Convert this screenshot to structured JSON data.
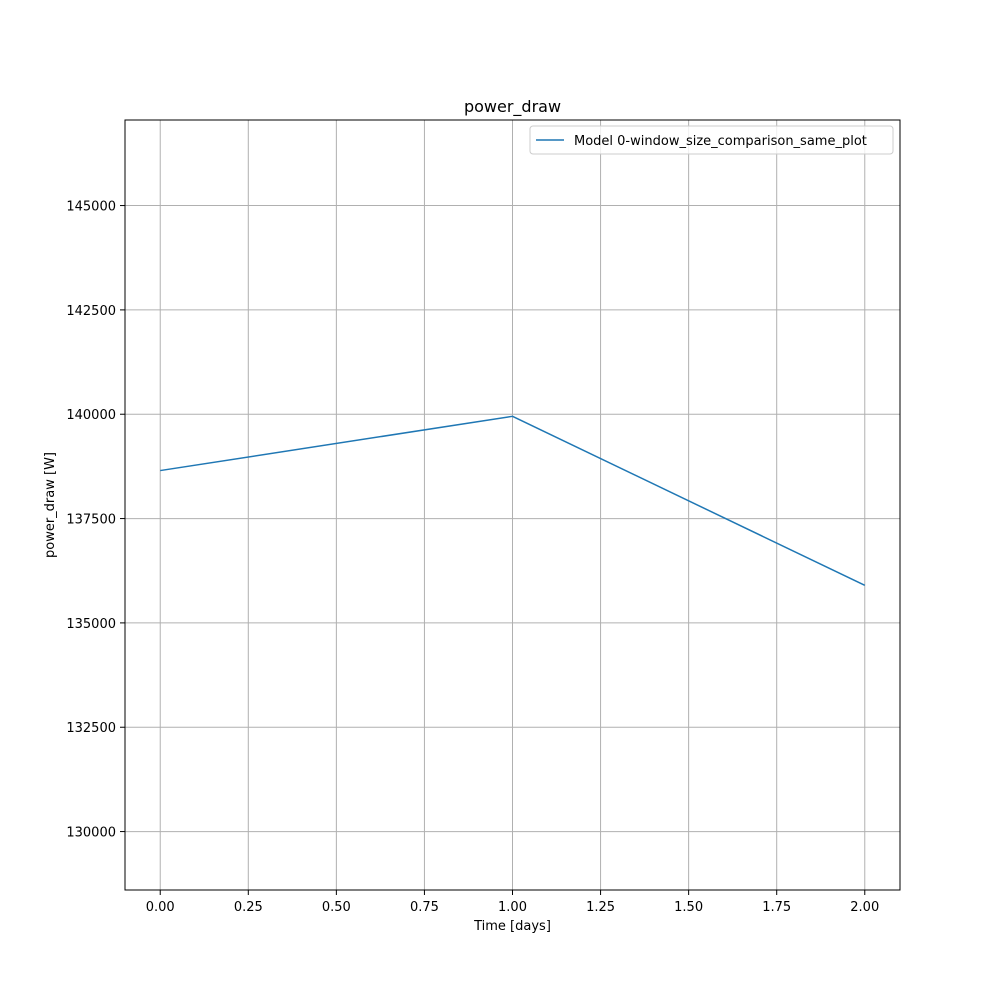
{
  "chart_data": {
    "type": "line",
    "title": "power_draw",
    "xlabel": "Time [days]",
    "ylabel": "power_draw [W]",
    "xlim": [
      -0.1,
      2.1
    ],
    "ylim": [
      128600,
      147050
    ],
    "xticks": [
      0.0,
      0.25,
      0.5,
      0.75,
      1.0,
      1.25,
      1.5,
      1.75,
      2.0
    ],
    "xtick_labels": [
      "0.00",
      "0.25",
      "0.50",
      "0.75",
      "1.00",
      "1.25",
      "1.50",
      "1.75",
      "2.00"
    ],
    "yticks": [
      130000,
      132500,
      135000,
      137500,
      140000,
      142500,
      145000
    ],
    "ytick_labels": [
      "130000",
      "132500",
      "135000",
      "137500",
      "140000",
      "142500",
      "145000"
    ],
    "grid": true,
    "legend_position": "top-right",
    "series": [
      {
        "name": "Model 0-window_size_comparison_same_plot",
        "color": "#1f77b4",
        "x": [
          0.0,
          1.0,
          2.0
        ],
        "y": [
          138650,
          139950,
          135900
        ]
      }
    ]
  }
}
